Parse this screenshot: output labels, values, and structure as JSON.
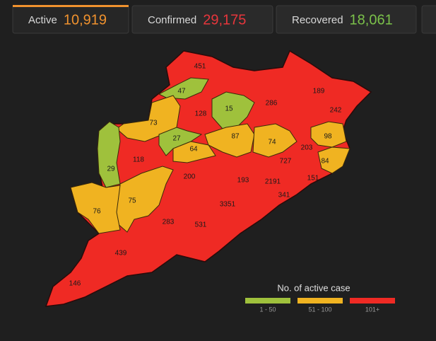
{
  "tabs": [
    {
      "label": "Active",
      "value": "10,919",
      "color": "#f0922e"
    },
    {
      "label": "Confirmed",
      "value": "29,175",
      "color": "#e8363c"
    },
    {
      "label": "Recovered",
      "value": "18,061",
      "color": "#7bc14a"
    }
  ],
  "districts": [
    451,
    47,
    189,
    128,
    15,
    286,
    242,
    73,
    98,
    27,
    87,
    74,
    64,
    203,
    118,
    84,
    727,
    29,
    200,
    193,
    2191,
    151,
    341,
    75,
    76,
    3351,
    283,
    531,
    439,
    146
  ],
  "legend": {
    "title": "No. of active case",
    "items": [
      {
        "label": "1 - 50",
        "color": "#9fc13c"
      },
      {
        "label": "51 - 100",
        "color": "#f0b321"
      },
      {
        "label": "101+",
        "color": "#ef2a24"
      }
    ]
  }
}
